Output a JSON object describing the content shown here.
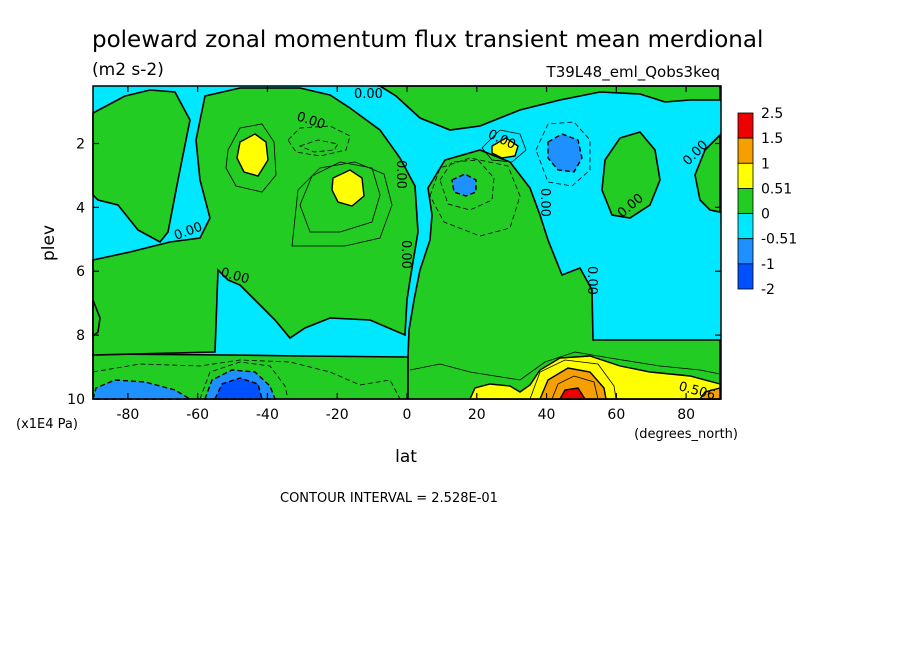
{
  "chart_data": {
    "type": "heatmap",
    "title": "poleward zonal momentum flux transient mean merdional",
    "units_label": "(m2 s-2)",
    "run_label": "T39L48_eml_Qobs3keq",
    "xlabel": "lat",
    "x_units": "(degrees_north)",
    "ylabel": "plev",
    "y_units": "(x1E4 Pa)",
    "xlim": [
      -90,
      90
    ],
    "ylim": [
      0.2,
      10
    ],
    "y_reversed": true,
    "x_ticks": [
      "-80",
      "-60",
      "-40",
      "-20",
      "0",
      "20",
      "40",
      "60",
      "80"
    ],
    "y_ticks": [
      "2",
      "4",
      "6",
      "8",
      "10"
    ],
    "footer": "CONTOUR INTERVAL = 2.528E-01",
    "colorbar": {
      "labels": [
        "2.5",
        "1.5",
        "1",
        "0.51",
        "0",
        "-0.51",
        "-1",
        "-2"
      ],
      "colors": [
        "#ee0000",
        "#f5a000",
        "#ffff00",
        "#22cc22",
        "#00e8ff",
        "#1e90ff",
        "#0050ff"
      ]
    },
    "contour_labels": [
      "0.00",
      "0.00",
      "0.00",
      "0.00",
      "0.00",
      "0.00",
      "0.00",
      "0.00",
      "0.00",
      "0.00",
      "0.00",
      "0.506"
    ],
    "features": [
      {
        "lat": -47,
        "plev": 2.1,
        "value": 1.0
      },
      {
        "lat": -18,
        "plev": 3.3,
        "value": 1.0
      },
      {
        "lat": 28,
        "plev": 2.1,
        "value": 0.9
      },
      {
        "lat": 47,
        "plev": 2.3,
        "value": -0.9
      },
      {
        "lat": 17,
        "plev": 3.2,
        "value": -0.6
      },
      {
        "lat": -22,
        "plev": 2.0,
        "value": -0.4
      },
      {
        "lat": -48,
        "plev": 9.6,
        "value": -1.3
      },
      {
        "lat": -82,
        "plev": 9.7,
        "value": -0.8
      },
      {
        "lat": 48,
        "plev": 9.8,
        "value": 2.5
      },
      {
        "lat": 25,
        "plev": 9.8,
        "value": 1.2
      },
      {
        "lat": 80,
        "plev": 9.7,
        "value": 0.6
      }
    ]
  }
}
